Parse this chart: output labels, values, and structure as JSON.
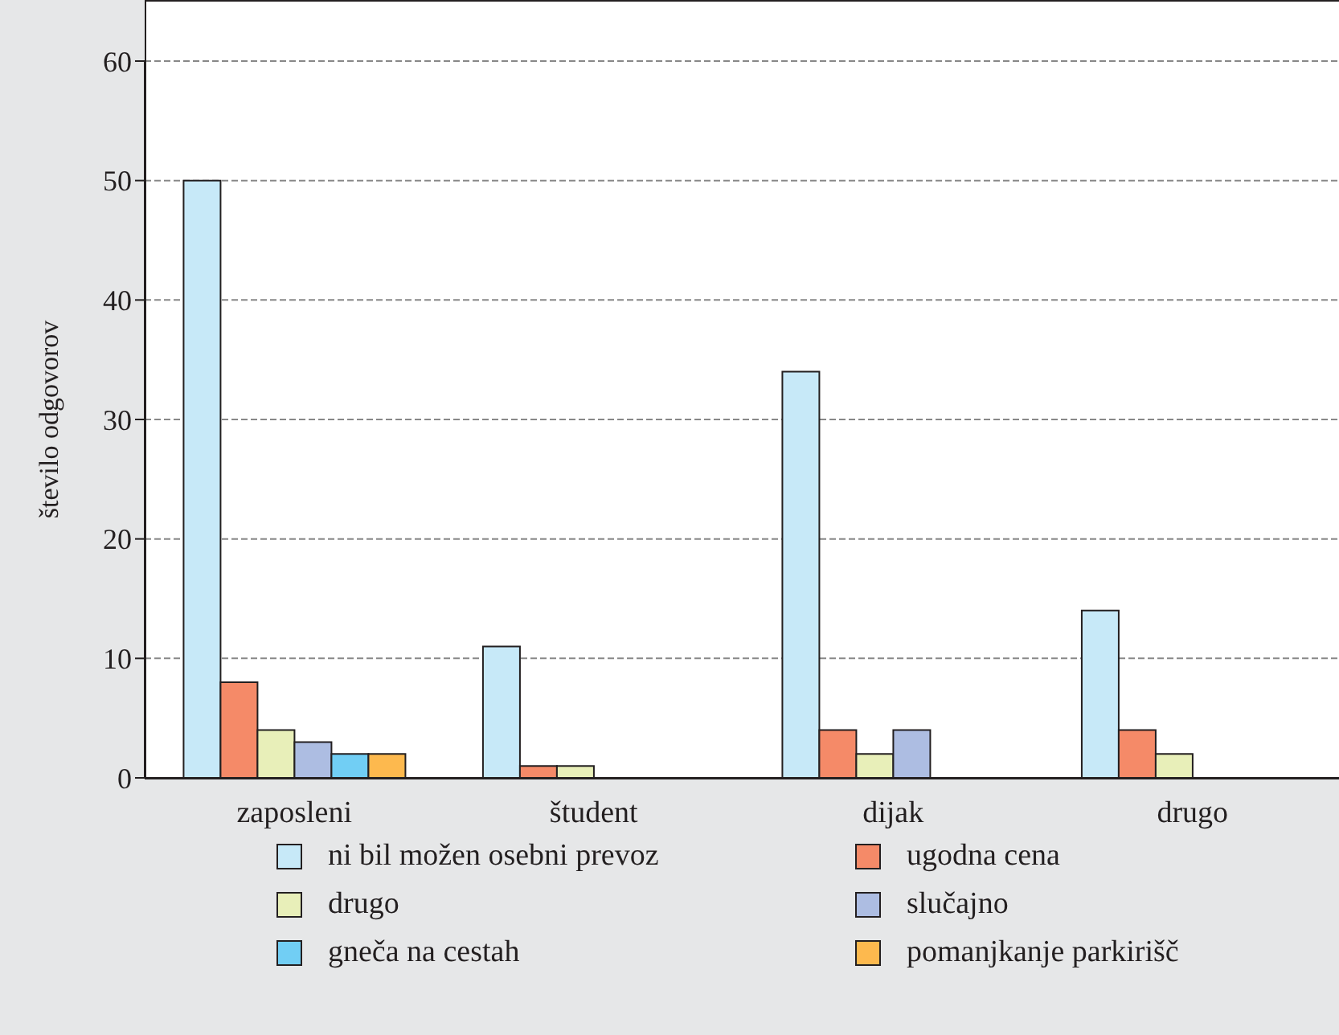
{
  "chart_data": {
    "type": "bar",
    "ylabel": "število odgovorov",
    "categories": [
      "zaposleni",
      "študent",
      "dijak",
      "drugo"
    ],
    "series": [
      {
        "name": "ni bil možen osebni prevoz",
        "color": "#c7e9f8",
        "values": [
          50,
          11,
          34,
          14
        ]
      },
      {
        "name": "ugodna cena",
        "color": "#f58a68",
        "values": [
          8,
          1,
          4,
          4
        ]
      },
      {
        "name": "drugo",
        "color": "#e8efb9",
        "values": [
          4,
          1,
          2,
          2
        ]
      },
      {
        "name": "slučajno",
        "color": "#adbde2",
        "values": [
          3,
          null,
          4,
          null
        ]
      },
      {
        "name": "gneča na cestah",
        "color": "#71cef4",
        "values": [
          2,
          null,
          null,
          null
        ]
      },
      {
        "name": "pomanjkanje parkirišč",
        "color": "#fdb94e",
        "values": [
          2,
          null,
          null,
          null
        ]
      }
    ],
    "ylim": [
      0,
      60
    ],
    "yticks": [
      0,
      10,
      20,
      30,
      40,
      50,
      60
    ],
    "grid": "y",
    "legend": "bottom"
  }
}
